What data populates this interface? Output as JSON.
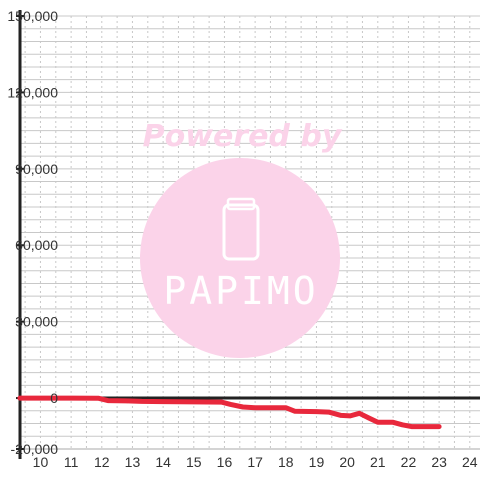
{
  "chart_data": {
    "type": "line",
    "title": "",
    "xlabel": "",
    "ylabel": "",
    "xlim": [
      9.333,
      24.333
    ],
    "ylim": [
      -20000,
      150000
    ],
    "x_ticks": [
      "10",
      "11",
      "12",
      "13",
      "14",
      "15",
      "16",
      "17",
      "18",
      "19",
      "20",
      "21",
      "22",
      "23",
      "24"
    ],
    "y_ticks": [
      "150,000",
      "120,000",
      "90,000",
      "60,000",
      "30,000",
      "0",
      "-20,000"
    ],
    "y_tick_values": [
      150000,
      120000,
      90000,
      60000,
      30000,
      0,
      -20000
    ],
    "grid": true,
    "series": [
      {
        "color": "#e8283c",
        "x": [
          9.33,
          10,
          11,
          11.9,
          12.2,
          12.8,
          13.3,
          14,
          15,
          15.9,
          16.2,
          16.6,
          17,
          18,
          18.3,
          19,
          19.4,
          19.8,
          20.1,
          20.4,
          20.7,
          21,
          21.5,
          21.8,
          22.1,
          23
        ],
        "y": [
          0,
          0,
          0,
          -100,
          -1000,
          -1100,
          -1300,
          -1400,
          -1500,
          -1600,
          -2500,
          -3500,
          -3800,
          -3800,
          -5200,
          -5300,
          -5500,
          -6800,
          -7000,
          -6000,
          -7800,
          -9500,
          -9500,
          -10500,
          -11200,
          -11200
        ]
      }
    ]
  },
  "watermark": {
    "line1": "Powered by",
    "brand": "PAPIMO",
    "icon": "phone-icon",
    "color": "#fbd3e9"
  }
}
